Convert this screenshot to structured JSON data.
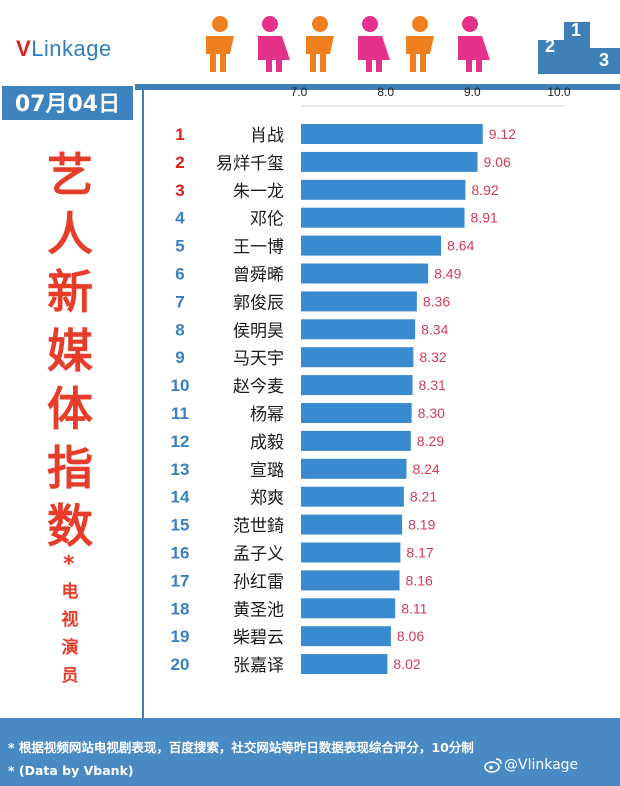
{
  "logo": {
    "v": "V",
    "rest1": "Link",
    "rest2": "age"
  },
  "date": "07月04日",
  "title_chars": [
    "艺",
    "人",
    "新",
    "媒",
    "体",
    "指",
    "数"
  ],
  "star": "*",
  "subtitle_chars": [
    "电",
    "视",
    "演",
    "员"
  ],
  "footer": {
    "note1": "* 根据视频网站电视剧表现，百度搜索，社交网站等昨日数据表现综合评分，10分制",
    "note2": "* (Data by Vbank)",
    "watermark": "@Vlinkage"
  },
  "colors": {
    "bar": "#3a8ad0",
    "value_text": "#d63a5a",
    "rank_top": "#e0201c",
    "rank_other": "#3a7fc0",
    "accent_orange": "#f07f1f",
    "accent_pink": "#e6318a",
    "title_red": "#e73c2a",
    "band_blue": "#3e7fb7"
  },
  "chart_data": {
    "type": "bar",
    "orientation": "horizontal",
    "title": "",
    "xlabel": "",
    "ylabel": "",
    "x_ticks": [
      "7.0",
      "8.0",
      "9.0",
      "10.0"
    ],
    "xlim": [
      7.0,
      10.0
    ],
    "ranks": [
      "1",
      "2",
      "3",
      "4",
      "5",
      "6",
      "7",
      "8",
      "9",
      "10",
      "11",
      "12",
      "13",
      "14",
      "15",
      "16",
      "17",
      "18",
      "19",
      "20"
    ],
    "categories": [
      "肖战",
      "易烊千玺",
      "朱一龙",
      "邓伦",
      "王一博",
      "曾舜晞",
      "郭俊辰",
      "侯明昊",
      "马天宇",
      "赵今麦",
      "杨幂",
      "成毅",
      "宣璐",
      "郑爽",
      "范世錡",
      "孟子义",
      "孙红雷",
      "黄圣池",
      "柴碧云",
      "张嘉译"
    ],
    "values": [
      9.12,
      9.06,
      8.92,
      8.91,
      8.64,
      8.49,
      8.36,
      8.34,
      8.32,
      8.31,
      8.3,
      8.29,
      8.24,
      8.21,
      8.19,
      8.17,
      8.16,
      8.11,
      8.06,
      8.02
    ],
    "value_labels": [
      "9.12",
      "9.06",
      "8.92",
      "8.91",
      "8.64",
      "8.49",
      "8.36",
      "8.34",
      "8.32",
      "8.31",
      "8.30",
      "8.29",
      "8.24",
      "8.21",
      "8.19",
      "8.17",
      "8.16",
      "8.11",
      "8.06",
      "8.02"
    ],
    "grid": false,
    "legend": "none"
  }
}
